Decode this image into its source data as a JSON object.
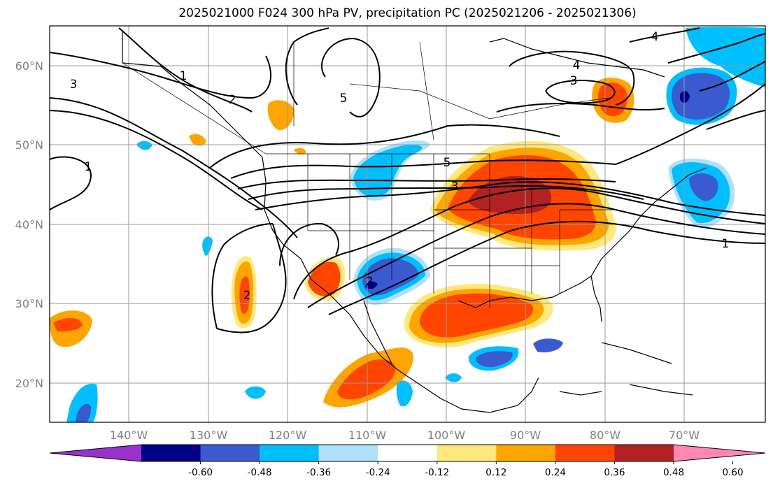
{
  "title": "2025021000 F024 300 hPa PV, precipitation PC (2025021206 - 2025021306)",
  "lat_labels": [
    "60°N",
    "50°N",
    "40°N",
    "30°N",
    "20°N"
  ],
  "lon_labels": [
    "140°W",
    "130°W",
    "120°W",
    "110°W",
    "100°W",
    "90°W",
    "80°W",
    "70°W"
  ],
  "contour_labels": [
    "1",
    "1",
    "2",
    "3",
    "4",
    "5",
    "5",
    "3",
    "3",
    "4",
    "1",
    "2",
    "2"
  ],
  "colorbar": {
    "labels": [
      "-0.60",
      "-0.48",
      "-0.36",
      "-0.24",
      "-0.12",
      "0.12",
      "0.24",
      "0.36",
      "0.48",
      "0.60"
    ],
    "colors": [
      "#9932cc",
      "#00008b",
      "#3a5ad0",
      "#00bfff",
      "#b0e0fa",
      "#ffffff",
      "#ffe87c",
      "#ffa500",
      "#ff4500",
      "#b22222",
      "#ff88b0"
    ]
  }
}
